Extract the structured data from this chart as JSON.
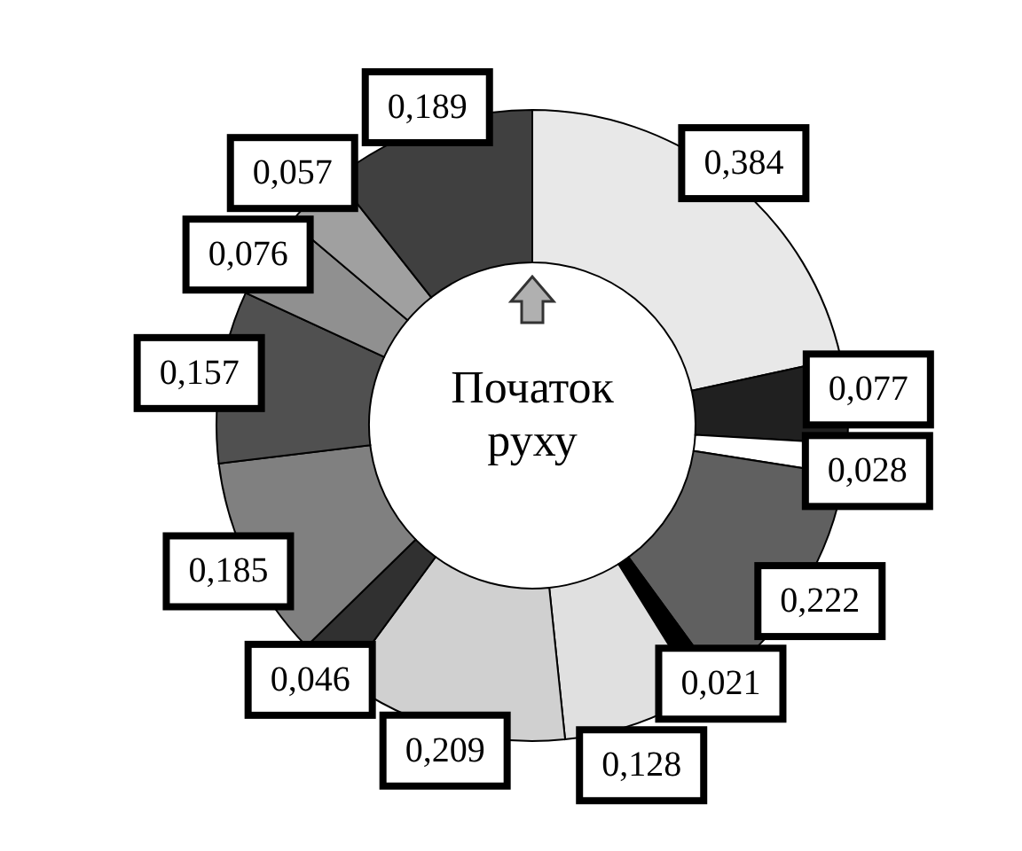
{
  "chart_data": {
    "type": "donut",
    "categories": [
      null,
      null,
      null,
      null,
      null,
      null,
      null,
      null,
      null,
      null,
      null,
      null,
      null
    ],
    "values": [
      0.384,
      0.077,
      0.028,
      0.222,
      0.021,
      0.128,
      0.209,
      0.046,
      0.185,
      0.157,
      0.076,
      0.057,
      0.189
    ],
    "value_labels": [
      "0,384",
      "0,077",
      "0,028",
      "0,222",
      "0,021",
      "0,128",
      "0,209",
      "0,046",
      "0,185",
      "0,157",
      "0,076",
      "0,057",
      "0,189"
    ],
    "colors": [
      "#e8e8e8",
      "#202020",
      "#ffffff",
      "#606060",
      "#000000",
      "#e0e0e0",
      "#d0d0d0",
      "#303030",
      "#808080",
      "#505050",
      "#909090",
      "#a0a0a0",
      "#404040"
    ],
    "annotations": [
      "Початок руху"
    ]
  }
}
